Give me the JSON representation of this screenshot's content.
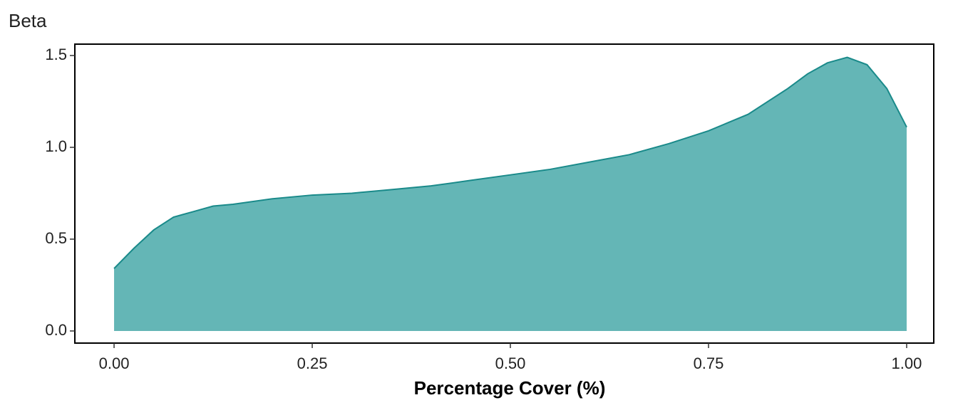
{
  "chart_data": {
    "type": "area",
    "title": "Beta",
    "x_label": "Percentage Cover (%)",
    "x": [
      0,
      0.025,
      0.05,
      0.075,
      0.1,
      0.125,
      0.15,
      0.2,
      0.25,
      0.3,
      0.35,
      0.4,
      0.45,
      0.5,
      0.55,
      0.6,
      0.65,
      0.7,
      0.75,
      0.8,
      0.85,
      0.875,
      0.9,
      0.925,
      0.95,
      0.975,
      1.0
    ],
    "values": [
      0.34,
      0.45,
      0.55,
      0.62,
      0.65,
      0.68,
      0.69,
      0.72,
      0.74,
      0.75,
      0.77,
      0.79,
      0.82,
      0.85,
      0.88,
      0.92,
      0.96,
      1.02,
      1.09,
      1.18,
      1.32,
      1.4,
      1.46,
      1.49,
      1.45,
      1.32,
      1.11
    ],
    "fill": "#64b6b6",
    "line_color": "#1a8a8a",
    "xlim": [
      -0.0495,
      1.0342
    ],
    "ylim": [
      -0.066,
      1.562
    ],
    "xticks": [
      {
        "value": 0,
        "label": "0.00"
      },
      0.25,
      {
        "value": 0.5,
        "label": "0.50"
      },
      0.75,
      {
        "value": 1,
        "label": "1.00"
      }
    ],
    "yticks": [
      {
        "value": 0,
        "label": "0.0"
      },
      0.5,
      {
        "value": 1,
        "label": "1.0"
      },
      1.5
    ]
  }
}
